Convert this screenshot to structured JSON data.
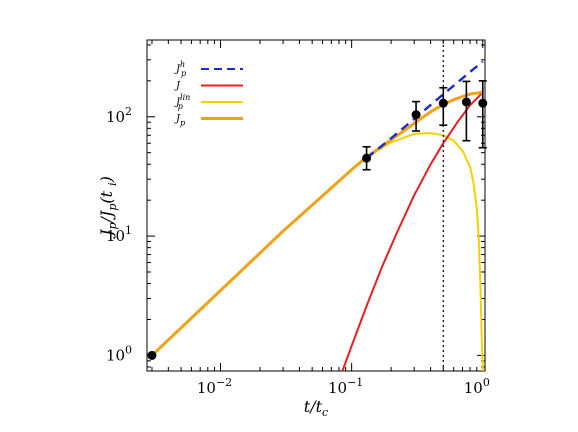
{
  "chart_data": {
    "type": "line",
    "x_scale": "log",
    "y_scale": "log",
    "xlim": [
      0.00275,
      1.04
    ],
    "ylim": [
      0.74,
      440
    ],
    "xlabel": "t/t_c",
    "ylabel": "J_p/J_p(t_i)",
    "x_ticks": [
      {
        "value": 0.01,
        "base": "10",
        "exp": "−2"
      },
      {
        "value": 0.1,
        "base": "10",
        "exp": "−1"
      },
      {
        "value": 1,
        "base": "10",
        "exp": "0"
      }
    ],
    "y_ticks": [
      {
        "value": 1,
        "base": "10",
        "exp": "0"
      },
      {
        "value": 10,
        "base": "10",
        "exp": "1"
      },
      {
        "value": 100,
        "base": "10",
        "exp": "2"
      }
    ],
    "vline": {
      "x": 0.5,
      "style": "dotted"
    },
    "legend_position": "top-left",
    "legend": [
      {
        "main": "J",
        "sup": "h",
        "sub": "p"
      },
      {
        "main": "J",
        "sup": "",
        "sub": ""
      },
      {
        "main": "J",
        "sup": "lin",
        "sub": "p"
      },
      {
        "main": "J",
        "sup": "",
        "sub": "p"
      }
    ],
    "series": [
      {
        "key": "Jph",
        "style": "dashed",
        "color": "#1a2bd6",
        "x": [
          0.13,
          0.2,
          0.3,
          0.45,
          0.6,
          0.8,
          1.0
        ],
        "y": [
          45,
          66,
          96,
          140,
          182,
          238,
          290
        ]
      },
      {
        "key": "J",
        "style": "solid",
        "color": "#e8201e",
        "x": [
          0.085,
          0.1,
          0.13,
          0.17,
          0.22,
          0.3,
          0.4,
          0.5,
          0.65,
          0.8,
          1.0
        ],
        "y": [
          0.74,
          1.2,
          2.6,
          5.5,
          10.5,
          22,
          40,
          60,
          92,
          125,
          160
        ]
      },
      {
        "key": "Jplin",
        "style": "solid",
        "color": "#f5d000",
        "x": [
          0.003,
          0.01,
          0.03,
          0.1,
          0.13,
          0.2,
          0.3,
          0.4,
          0.5,
          0.6,
          0.7,
          0.8,
          0.85,
          0.9,
          0.93,
          0.96,
          0.98,
          1.0
        ],
        "y": [
          1,
          3.5,
          11,
          36,
          46,
          61,
          72,
          73,
          70,
          63,
          52,
          38,
          28,
          17,
          10,
          4,
          1.5,
          0.74
        ]
      },
      {
        "key": "Jp",
        "style": "solid",
        "color": "#f2a21a",
        "x": [
          0.003,
          0.01,
          0.03,
          0.1,
          0.13,
          0.2,
          0.3,
          0.4,
          0.5,
          0.6,
          0.7,
          0.8,
          0.9,
          1.0
        ],
        "y": [
          1,
          3.5,
          11,
          36,
          46,
          64,
          88,
          110,
          127,
          139,
          148,
          155,
          158,
          160
        ]
      }
    ],
    "points": [
      {
        "x": 0.003,
        "y": 1.0,
        "err_lo": 0,
        "err_hi": 0
      },
      {
        "x": 0.13,
        "y": 45,
        "err_lo": 9,
        "err_hi": 11
      },
      {
        "x": 0.31,
        "y": 104,
        "err_lo": 28,
        "err_hi": 30
      },
      {
        "x": 0.5,
        "y": 130,
        "err_lo": 45,
        "err_hi": 45
      },
      {
        "x": 0.75,
        "y": 133,
        "err_lo": 70,
        "err_hi": 65
      },
      {
        "x": 1.0,
        "y": 130,
        "err_lo": 75,
        "err_hi": 70
      }
    ]
  }
}
